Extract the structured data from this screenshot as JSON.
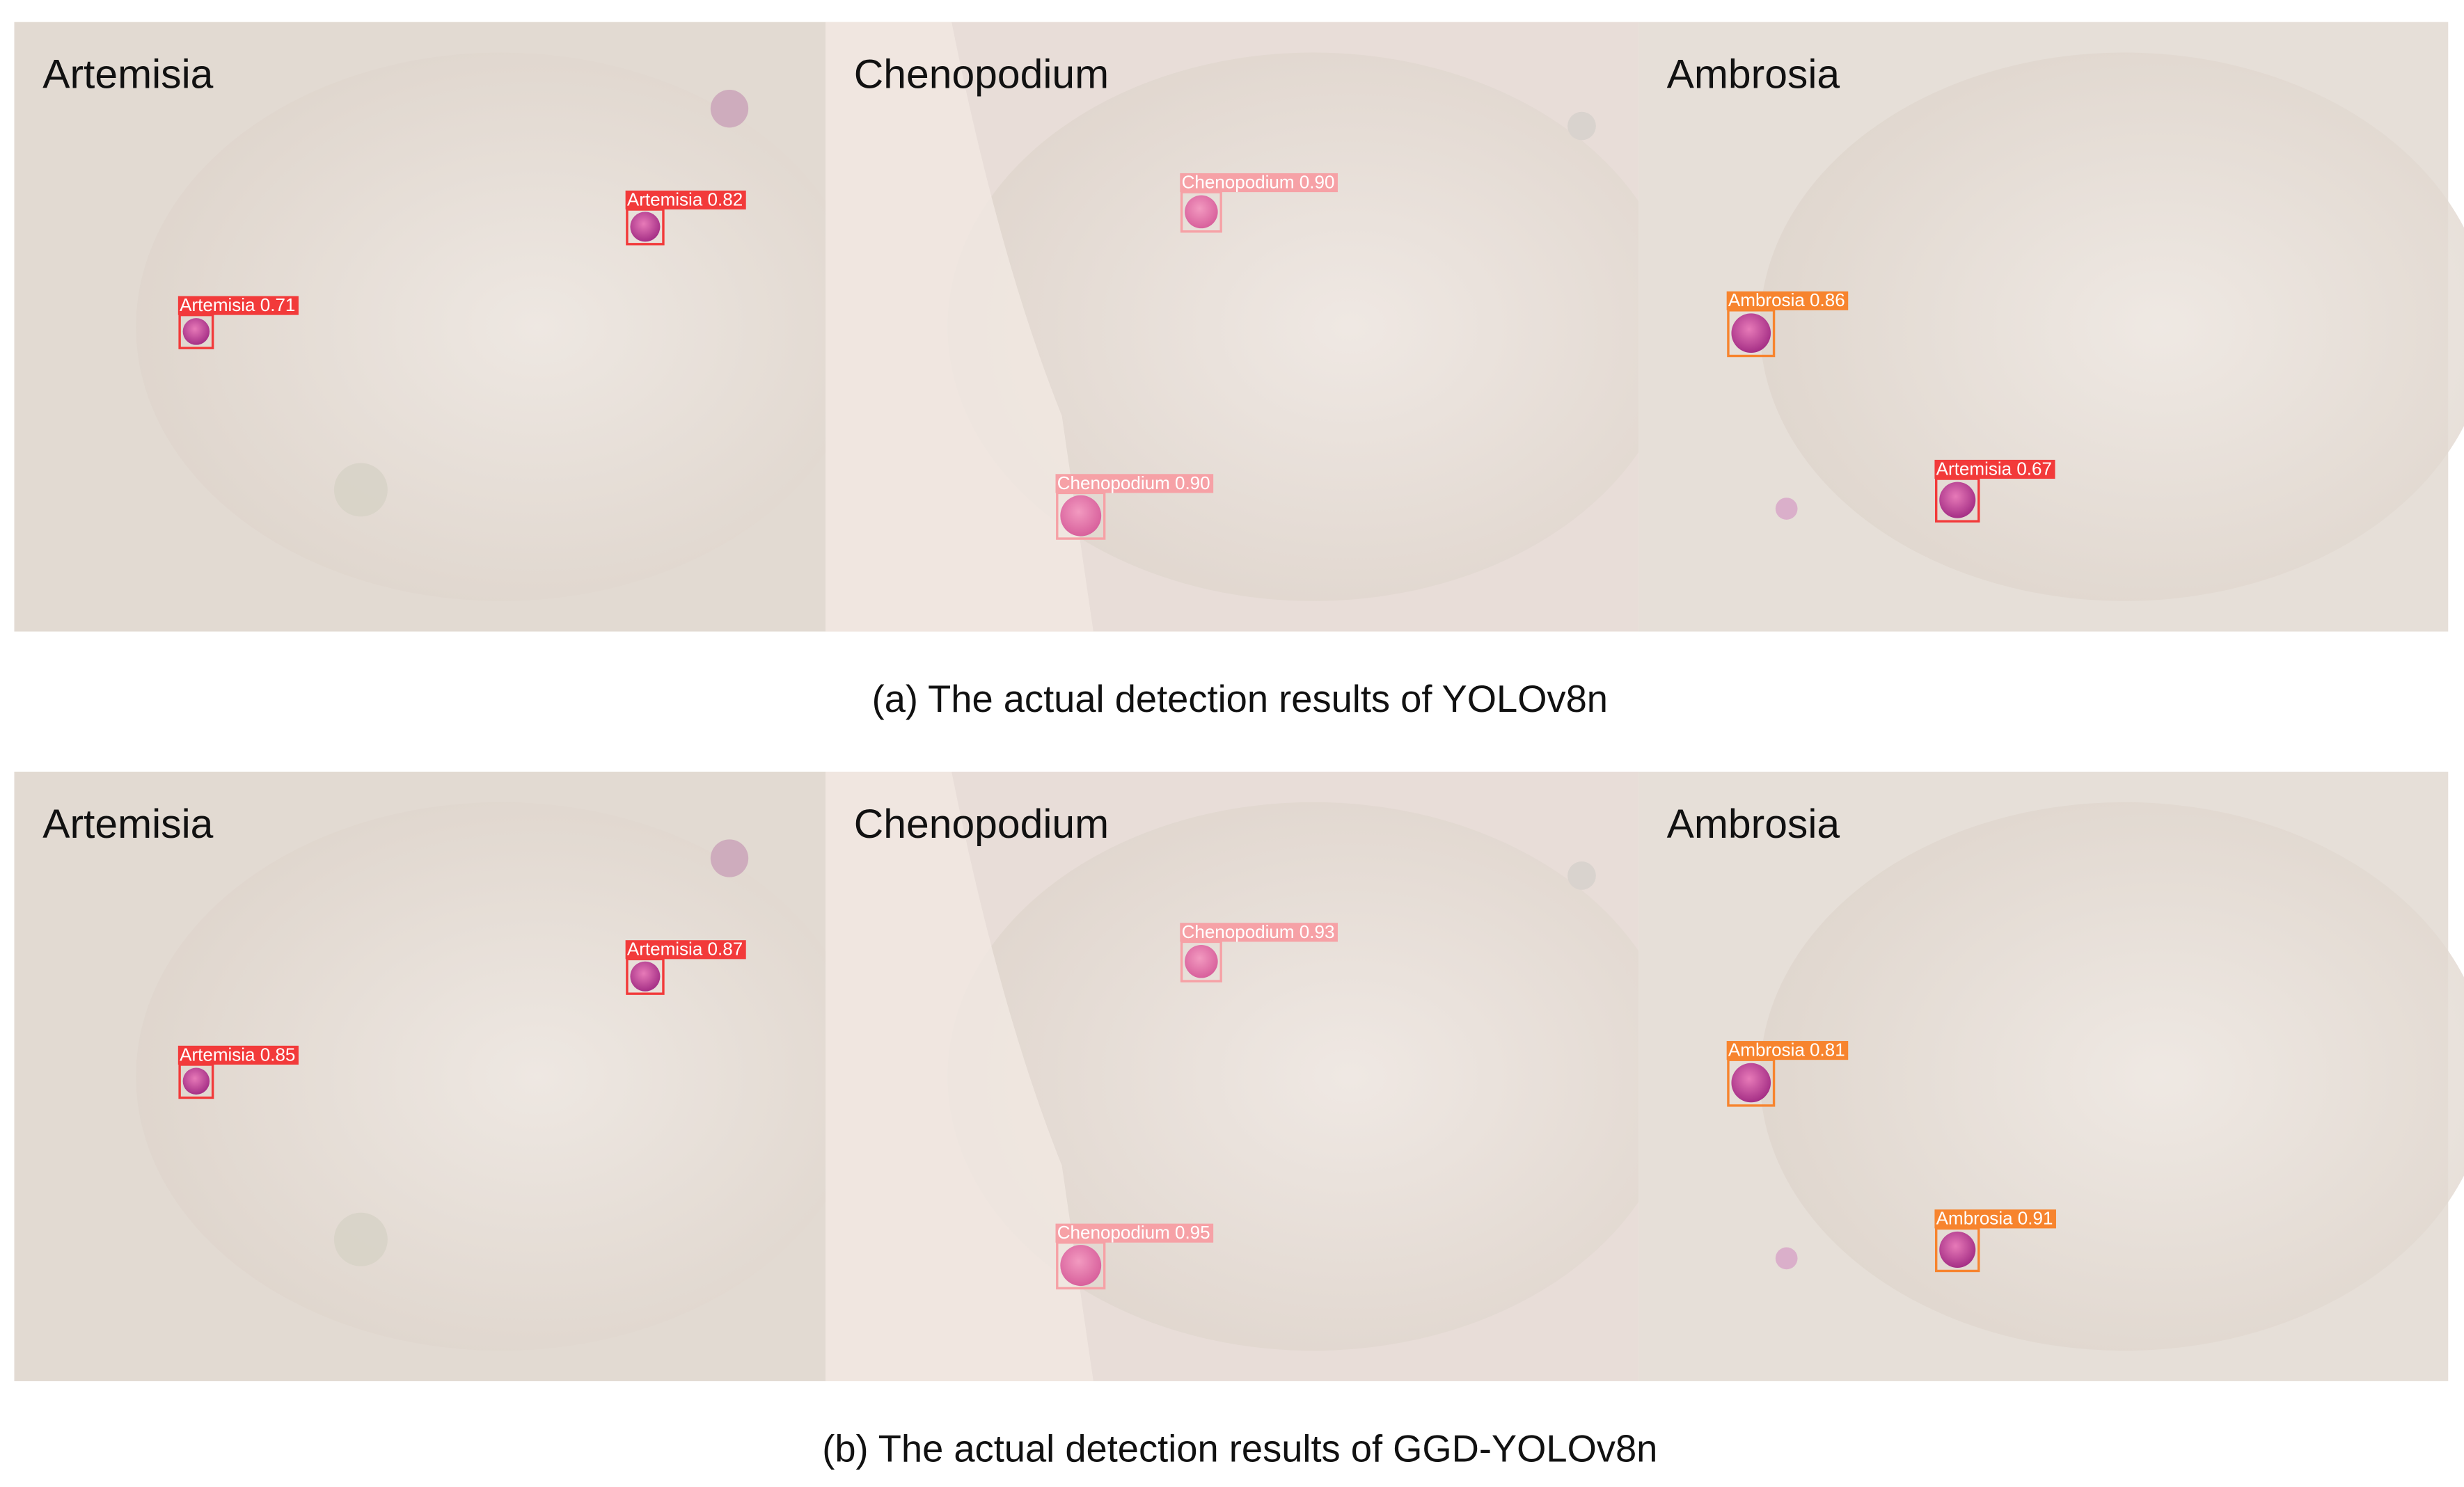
{
  "figure": {
    "rows": [
      {
        "caption": "(a) The actual detection results of YOLOv8n",
        "panels": [
          {
            "label": "Artemisia",
            "detections": [
              {
                "label": "Artemisia 0.82",
                "color": "#f23a3a"
              },
              {
                "label": "Artemisia 0.71",
                "color": "#f23a3a"
              }
            ]
          },
          {
            "label": "Chenopodium",
            "detections": [
              {
                "label": "Chenopodium 0.90",
                "color": "#f6a1a6"
              },
              {
                "label": "Chenopodium 0.90",
                "color": "#f6a1a6"
              }
            ]
          },
          {
            "label": "Ambrosia",
            "detections": [
              {
                "label": "Ambrosia 0.86",
                "color": "#f7842e"
              },
              {
                "label": "Artemisia 0.67",
                "color": "#f23a3a"
              }
            ]
          }
        ]
      },
      {
        "caption": "(b) The actual detection results of GGD-YOLOv8n",
        "panels": [
          {
            "label": "Artemisia",
            "detections": [
              {
                "label": "Artemisia 0.87",
                "color": "#f23a3a"
              },
              {
                "label": "Artemisia 0.85",
                "color": "#f23a3a"
              }
            ]
          },
          {
            "label": "Chenopodium",
            "detections": [
              {
                "label": "Chenopodium 0.93",
                "color": "#f6a1a6"
              },
              {
                "label": "Chenopodium 0.95",
                "color": "#f6a1a6"
              }
            ]
          },
          {
            "label": "Ambrosia",
            "detections": [
              {
                "label": "Ambrosia 0.81",
                "color": "#f7842e"
              },
              {
                "label": "Ambrosia 0.91",
                "color": "#f7842e"
              }
            ]
          }
        ]
      }
    ]
  }
}
